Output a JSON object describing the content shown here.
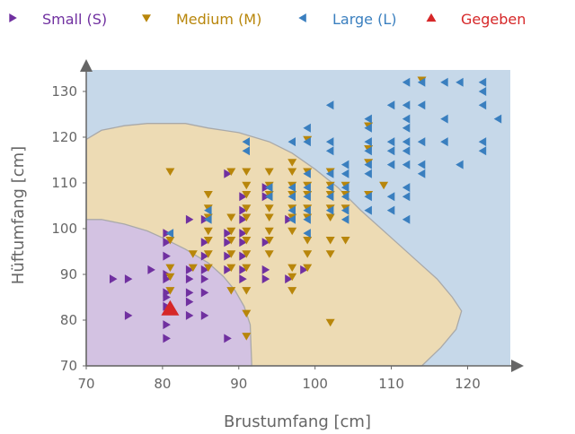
{
  "chart_data": {
    "type": "scatter",
    "title": "",
    "xlabel": "Brustumfang [cm]",
    "ylabel": "Hüftumfang [cm]",
    "xlim": [
      70,
      126
    ],
    "ylim": [
      70,
      135
    ],
    "xticks": [
      70,
      80,
      90,
      100,
      110,
      120
    ],
    "yticks": [
      70,
      80,
      90,
      100,
      110,
      120,
      130
    ],
    "grid": false,
    "legend_position": "top",
    "legend": [
      {
        "label": "Small (S)",
        "marker": "triangle-right",
        "color": "#7030a0"
      },
      {
        "label": "Medium (M)",
        "marker": "triangle-down",
        "color": "#b8860b"
      },
      {
        "label": "Large (L)",
        "marker": "triangle-left",
        "color": "#3a7fbf"
      },
      {
        "label": "Gegeben",
        "marker": "triangle-up",
        "color": "#d62728"
      }
    ],
    "regions": [
      {
        "class": "Large (L)",
        "color": "#c6d8e9"
      },
      {
        "class": "Medium (M)",
        "color": "#eddbb4",
        "boundary": [
          [
            70,
            119.5
          ],
          [
            72,
            121.5
          ],
          [
            75,
            122.5
          ],
          [
            78,
            123
          ],
          [
            83,
            123
          ],
          [
            86,
            122
          ],
          [
            90,
            121
          ],
          [
            94,
            119
          ],
          [
            97,
            116.5
          ],
          [
            100,
            113
          ],
          [
            103,
            109
          ],
          [
            106,
            104
          ],
          [
            110,
            98
          ],
          [
            114,
            92
          ],
          [
            116,
            89
          ],
          [
            118,
            85
          ],
          [
            119.2,
            82
          ],
          [
            118.5,
            78
          ],
          [
            116.5,
            74
          ],
          [
            114,
            70
          ]
        ]
      },
      {
        "class": "Small (S)",
        "color": "#d3c2e2",
        "boundary": [
          [
            70,
            102
          ],
          [
            72,
            102
          ],
          [
            75,
            101
          ],
          [
            78,
            99.5
          ],
          [
            80,
            98
          ],
          [
            83,
            95.5
          ],
          [
            86,
            92.5
          ],
          [
            88,
            89.5
          ],
          [
            89.5,
            86.5
          ],
          [
            90.7,
            83
          ],
          [
            91.5,
            79
          ],
          [
            91.7,
            70
          ]
        ]
      }
    ],
    "series": [
      {
        "name": "Small (S)",
        "marker": "triangle-right",
        "color": "#7030a0",
        "points": [
          [
            73.5,
            89
          ],
          [
            75.5,
            89
          ],
          [
            75.5,
            81
          ],
          [
            78.5,
            91
          ],
          [
            80.5,
            99
          ],
          [
            80.5,
            97
          ],
          [
            80.5,
            94
          ],
          [
            80.5,
            90
          ],
          [
            80.5,
            89
          ],
          [
            80.5,
            86
          ],
          [
            80.5,
            85
          ],
          [
            80.5,
            83
          ],
          [
            80.5,
            79
          ],
          [
            80.5,
            76
          ],
          [
            83.5,
            102
          ],
          [
            83.5,
            91
          ],
          [
            83.5,
            89
          ],
          [
            83.5,
            86
          ],
          [
            83.5,
            84
          ],
          [
            83.5,
            81
          ],
          [
            85.5,
            102
          ],
          [
            85.5,
            97
          ],
          [
            85.5,
            94
          ],
          [
            85.5,
            91
          ],
          [
            85.5,
            89
          ],
          [
            85.5,
            86
          ],
          [
            85.5,
            81
          ],
          [
            88.5,
            112
          ],
          [
            88.5,
            99
          ],
          [
            88.5,
            97
          ],
          [
            88.5,
            94
          ],
          [
            88.5,
            91
          ],
          [
            88.5,
            76
          ],
          [
            90.5,
            107
          ],
          [
            90.5,
            104
          ],
          [
            90.5,
            102
          ],
          [
            90.5,
            99
          ],
          [
            90.5,
            97
          ],
          [
            90.5,
            94
          ],
          [
            90.5,
            91
          ],
          [
            90.5,
            89
          ],
          [
            93.5,
            109
          ],
          [
            93.5,
            107
          ],
          [
            93.5,
            97
          ],
          [
            93.5,
            91
          ],
          [
            93.5,
            89
          ],
          [
            96.5,
            102
          ],
          [
            96.5,
            89
          ],
          [
            98.5,
            91
          ]
        ]
      },
      {
        "name": "Medium (M)",
        "marker": "triangle-down",
        "color": "#b8860b",
        "points": [
          [
            81,
            112.5
          ],
          [
            81,
            97.5
          ],
          [
            81,
            91.5
          ],
          [
            81,
            89.5
          ],
          [
            81,
            86.5
          ],
          [
            84,
            94.5
          ],
          [
            84,
            91.5
          ],
          [
            86,
            107.5
          ],
          [
            86,
            104.5
          ],
          [
            86,
            102.5
          ],
          [
            86,
            99.5
          ],
          [
            86,
            97.5
          ],
          [
            86,
            94.5
          ],
          [
            86,
            91.5
          ],
          [
            89,
            112.5
          ],
          [
            89,
            102.5
          ],
          [
            89,
            99.5
          ],
          [
            89,
            97.5
          ],
          [
            89,
            94.5
          ],
          [
            89,
            91.5
          ],
          [
            89,
            86.5
          ],
          [
            91,
            112.5
          ],
          [
            91,
            109.5
          ],
          [
            91,
            107.5
          ],
          [
            91,
            104.5
          ],
          [
            91,
            102.5
          ],
          [
            91,
            99.5
          ],
          [
            91,
            97.5
          ],
          [
            91,
            94.5
          ],
          [
            91,
            91.5
          ],
          [
            91,
            86.5
          ],
          [
            91,
            81.5
          ],
          [
            91,
            76.5
          ],
          [
            94,
            112.5
          ],
          [
            94,
            109.5
          ],
          [
            94,
            107.5
          ],
          [
            94,
            104.5
          ],
          [
            94,
            102.5
          ],
          [
            94,
            99.5
          ],
          [
            94,
            97.5
          ],
          [
            94,
            94.5
          ],
          [
            97,
            114.5
          ],
          [
            97,
            112.5
          ],
          [
            97,
            109.5
          ],
          [
            97,
            107.5
          ],
          [
            97,
            104.5
          ],
          [
            97,
            102.5
          ],
          [
            97,
            99.5
          ],
          [
            97,
            91.5
          ],
          [
            97,
            89.5
          ],
          [
            97,
            86.5
          ],
          [
            99,
            119.5
          ],
          [
            99,
            112.5
          ],
          [
            99,
            109.5
          ],
          [
            99,
            107.5
          ],
          [
            99,
            104.5
          ],
          [
            99,
            102.5
          ],
          [
            99,
            97.5
          ],
          [
            99,
            94.5
          ],
          [
            99,
            91.5
          ],
          [
            102,
            112.5
          ],
          [
            102,
            109.5
          ],
          [
            102,
            107.5
          ],
          [
            102,
            104.5
          ],
          [
            102,
            102.5
          ],
          [
            102,
            97.5
          ],
          [
            102,
            94.5
          ],
          [
            102,
            79.5
          ],
          [
            104,
            109.5
          ],
          [
            104,
            107.5
          ],
          [
            104,
            104.5
          ],
          [
            104,
            97.5
          ],
          [
            107,
            122.5
          ],
          [
            107,
            117.5
          ],
          [
            107,
            114.5
          ],
          [
            107,
            107.5
          ],
          [
            109,
            109.5
          ],
          [
            114,
            132.5
          ]
        ]
      },
      {
        "name": "Large (L)",
        "marker": "triangle-left",
        "color": "#3a7fbf",
        "points": [
          [
            81,
            99
          ],
          [
            86,
            104
          ],
          [
            86,
            102
          ],
          [
            91,
            119
          ],
          [
            91,
            117
          ],
          [
            94,
            109
          ],
          [
            94,
            107
          ],
          [
            97,
            119
          ],
          [
            97,
            109
          ],
          [
            97,
            107
          ],
          [
            97,
            104
          ],
          [
            97,
            102
          ],
          [
            99,
            122
          ],
          [
            99,
            119
          ],
          [
            99,
            112
          ],
          [
            99,
            109
          ],
          [
            99,
            107
          ],
          [
            99,
            104
          ],
          [
            99,
            102
          ],
          [
            99,
            99
          ],
          [
            102,
            127
          ],
          [
            102,
            119
          ],
          [
            102,
            117
          ],
          [
            102,
            112
          ],
          [
            102,
            109
          ],
          [
            102,
            107
          ],
          [
            102,
            104
          ],
          [
            104,
            114
          ],
          [
            104,
            112
          ],
          [
            104,
            109
          ],
          [
            104,
            107
          ],
          [
            104,
            104
          ],
          [
            104,
            102
          ],
          [
            107,
            124
          ],
          [
            107,
            122
          ],
          [
            107,
            119
          ],
          [
            107,
            117
          ],
          [
            107,
            114
          ],
          [
            107,
            112
          ],
          [
            107,
            107
          ],
          [
            107,
            104
          ],
          [
            110,
            127
          ],
          [
            110,
            119
          ],
          [
            110,
            117
          ],
          [
            110,
            114
          ],
          [
            110,
            107
          ],
          [
            110,
            104
          ],
          [
            112,
            132
          ],
          [
            112,
            127
          ],
          [
            112,
            124
          ],
          [
            112,
            122
          ],
          [
            112,
            119
          ],
          [
            112,
            117
          ],
          [
            112,
            114
          ],
          [
            112,
            109
          ],
          [
            112,
            107
          ],
          [
            112,
            102
          ],
          [
            114,
            132
          ],
          [
            114,
            127
          ],
          [
            114,
            119
          ],
          [
            114,
            114
          ],
          [
            114,
            112
          ],
          [
            117,
            132
          ],
          [
            117,
            124
          ],
          [
            117,
            119
          ],
          [
            119,
            132
          ],
          [
            119,
            114
          ],
          [
            122,
            132
          ],
          [
            122,
            130
          ],
          [
            122,
            127
          ],
          [
            122,
            119
          ],
          [
            122,
            117
          ],
          [
            124,
            124
          ]
        ]
      },
      {
        "name": "Gegeben",
        "marker": "triangle-up",
        "color": "#d62728",
        "points": [
          [
            81,
            82.5
          ]
        ]
      }
    ]
  }
}
